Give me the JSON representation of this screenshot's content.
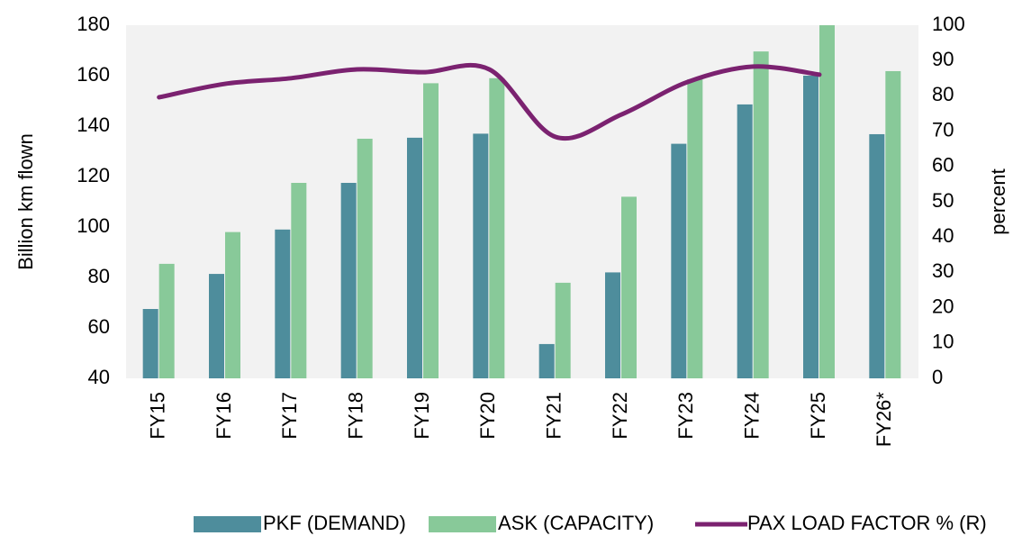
{
  "chart_data": {
    "type": "bar",
    "categories": [
      "FY15",
      "FY16",
      "FY17",
      "FY18",
      "FY19",
      "FY20",
      "FY21",
      "FY22",
      "FY23",
      "FY24",
      "FY25",
      "FY26*"
    ],
    "series": [
      {
        "name": "PKF (DEMAND)",
        "color": "#4e8d9c",
        "values": [
          67.5,
          81.4,
          99,
          117.5,
          135.4,
          137,
          53.6,
          82,
          133,
          148.6,
          160,
          136.8
        ]
      },
      {
        "name": "ASK (CAPACITY)",
        "color": "#88c999",
        "values": [
          85.4,
          98,
          117.5,
          135,
          157,
          159,
          77.9,
          112,
          158.6,
          169.6,
          180,
          161.8
        ]
      },
      {
        "name": "PAX LOAD FACTOR % (R)",
        "color": "#7b2270",
        "type": "line",
        "axis": "y2",
        "values": [
          79.6,
          83.4,
          85,
          87.5,
          86.7,
          87.5,
          68.4,
          74.7,
          83.9,
          88.3,
          86,
          null
        ]
      }
    ],
    "y_label": "Billion km flown",
    "y2_label": "percent",
    "ylim": [
      40,
      180
    ],
    "yticks": [
      40,
      60,
      80,
      100,
      120,
      140,
      160,
      180
    ],
    "y2lim": [
      0,
      100
    ],
    "y2ticks": [
      0,
      10,
      20,
      30,
      40,
      50,
      60,
      70,
      80,
      90,
      100
    ],
    "plot_background": "#f2f2f2",
    "legend": "bottom"
  }
}
